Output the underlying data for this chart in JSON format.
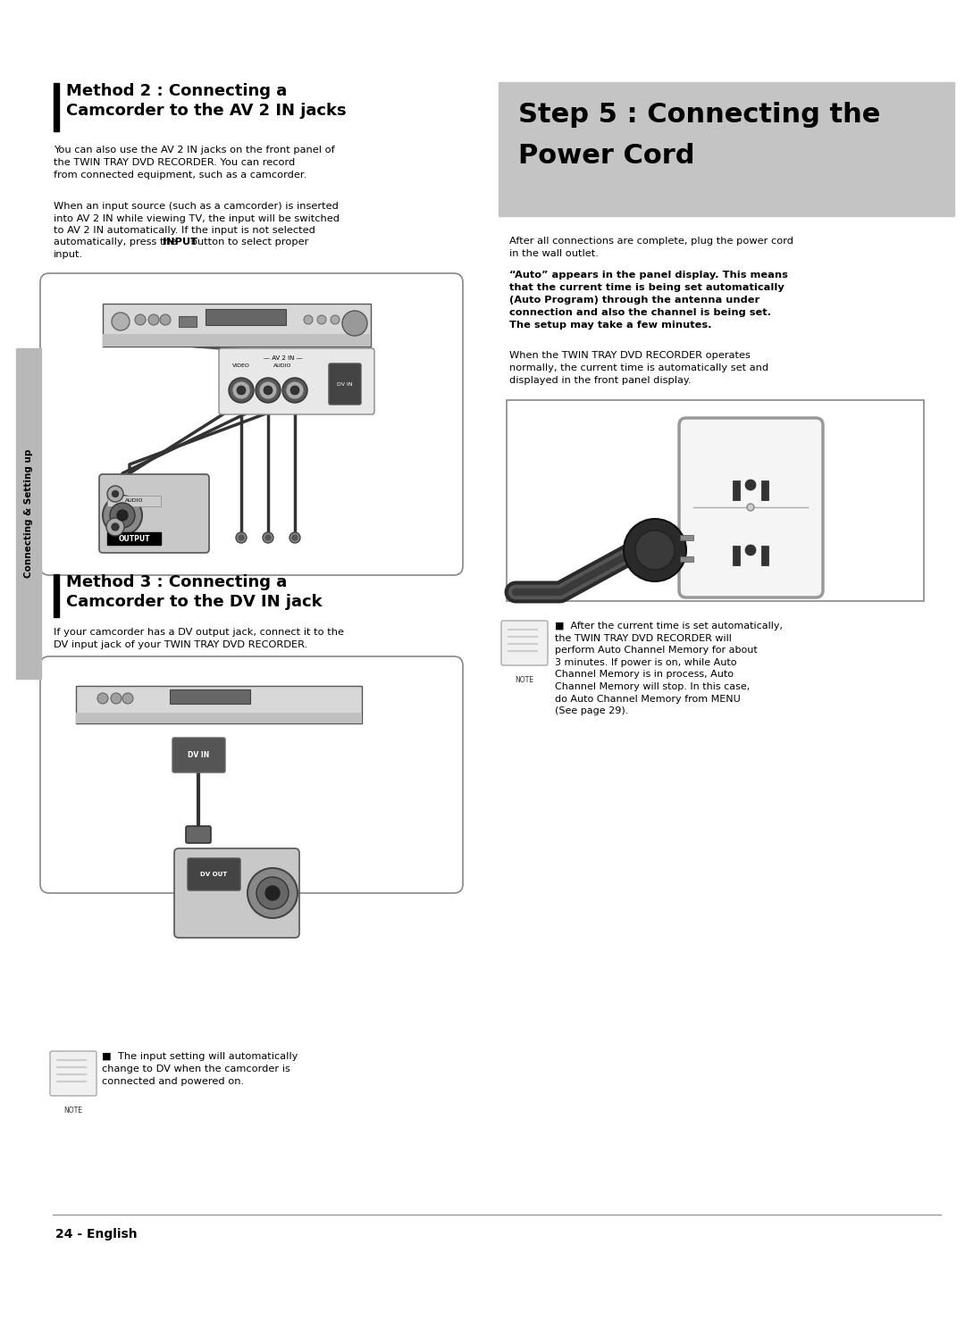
{
  "page_width": 10.8,
  "page_height": 14.87,
  "bg_color": "#ffffff",
  "method2_title_line1": "Method 2 : Connecting a",
  "method2_title_line2": "Camcorder to the AV 2 IN jacks",
  "method2_body1": "You can also use the AV 2 IN jacks on the front panel of\nthe TWIN TRAY DVD RECORDER. You can record\nfrom connected equipment, such as a camcorder.",
  "method2_body2_pre": "When an input source (such as a camcorder) is inserted\ninto AV 2 IN while viewing TV, the input will be switched\nto AV 2 IN automatically. If the input is not selected\nautomatically, press the ",
  "method2_body2_bold": "INPUT",
  "method2_body2_post": " button to select proper\ninput.",
  "method3_title_line1": "Method 3 : Connecting a",
  "method3_title_line2": "Camcorder to the DV IN jack",
  "method3_body": "If your camcorder has a DV output jack, connect it to the\nDV input jack of your TWIN TRAY DVD RECORDER.",
  "note3_text": "The input setting will automatically\nchange to DV when the camcorder is\nconnected and powered on.",
  "step5_title_line1": "Step 5 : Connecting the",
  "step5_title_line2": "Power Cord",
  "step5_bg": "#c4c4c4",
  "right_body1": "After all connections are complete, plug the power cord\nin the wall outlet.",
  "right_body2": "“Auto” appears in the panel display. This means\nthat the current time is being set automatically\n(Auto Program) through the antenna under\nconnection and also the channel is being set.\nThe setup may take a few minutes.",
  "right_body3": "When the TWIN TRAY DVD RECORDER operates\nnormally, the current time is automatically set and\ndisplayed in the front panel display.",
  "right_note": "After the current time is set automatically,\nthe TWIN TRAY DVD RECORDER will\nperform Auto Channel Memory for about\n3 minutes. If power is on, while Auto\nChannel Memory is in process, Auto\nChannel Memory will stop. In this case,\ndo Auto Channel Memory from MENU\n(See page 29).",
  "footer": "24 - English",
  "sidebar": "Connecting & Setting up"
}
